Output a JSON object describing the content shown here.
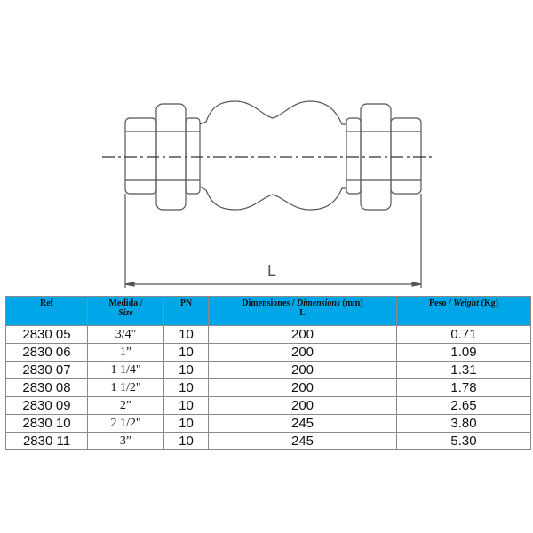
{
  "diagram": {
    "dimension_label": "L"
  },
  "table": {
    "headers": {
      "ref": "Ref",
      "size_es": "Medida /",
      "size_en": "Size",
      "pn": "PN",
      "dim_es": "Dimensiones / ",
      "dim_en": "Dimensions",
      "dim_unit": " (mm)",
      "dim_sub": "L",
      "weight_es": "Peso / ",
      "weight_en": "Weight",
      "weight_unit": " (Kg)"
    },
    "header_color": "#00a7e8",
    "rows": [
      {
        "ref": "2830 05",
        "size": "3/4\"",
        "pn": "10",
        "l": "200",
        "weight": "0.71"
      },
      {
        "ref": "2830 06",
        "size": "1”",
        "pn": "10",
        "l": "200",
        "weight": "1.09"
      },
      {
        "ref": "2830 07",
        "size": "1 1/4\"",
        "pn": "10",
        "l": "200",
        "weight": "1.31"
      },
      {
        "ref": "2830 08",
        "size": "1 1/2\"",
        "pn": "10",
        "l": "200",
        "weight": "1.78"
      },
      {
        "ref": "2830 09",
        "size": "2”",
        "pn": "10",
        "l": "200",
        "weight": "2.65"
      },
      {
        "ref": "2830 10",
        "size": "2 1/2\"",
        "pn": "10",
        "l": "245",
        "weight": "3.80"
      },
      {
        "ref": "2830 11",
        "size": "3”",
        "pn": "10",
        "l": "245",
        "weight": "5.30"
      }
    ]
  }
}
